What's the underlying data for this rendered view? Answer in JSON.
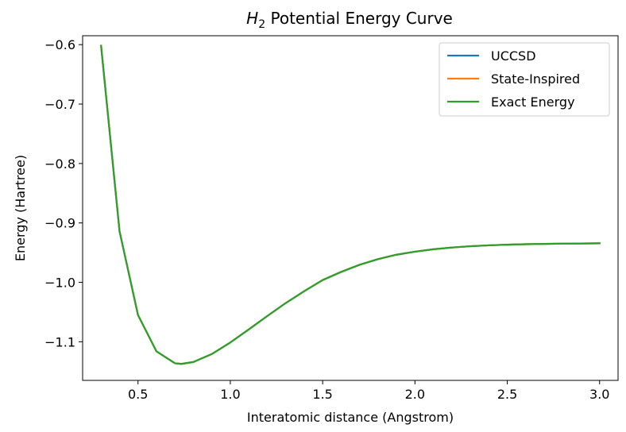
{
  "chart_data": {
    "type": "line",
    "title_main": "H",
    "title_sub": "2",
    "title_rest": " Potential Energy Curve",
    "xlabel": "Interatomic distance (Angstrom)",
    "ylabel": "Energy (Hartree)",
    "xlim": [
      0.2,
      3.1
    ],
    "ylim": [
      -1.165,
      -0.585
    ],
    "xticks": [
      0.5,
      1.0,
      1.5,
      2.0,
      2.5,
      3.0
    ],
    "xtick_labels": [
      "0.5",
      "1.0",
      "1.5",
      "2.0",
      "2.5",
      "3.0"
    ],
    "yticks": [
      -1.1,
      -1.0,
      -0.9,
      -0.8,
      -0.7,
      -0.6
    ],
    "ytick_labels": [
      "−1.1",
      "−1.0",
      "−0.9",
      "−0.8",
      "−0.7",
      "−0.6"
    ],
    "grid": false,
    "legend_position": "top-right",
    "x": [
      0.3,
      0.4,
      0.5,
      0.6,
      0.7,
      0.735,
      0.8,
      0.9,
      1.0,
      1.1,
      1.2,
      1.3,
      1.4,
      1.5,
      1.6,
      1.7,
      1.8,
      1.9,
      2.0,
      2.1,
      2.2,
      2.3,
      2.4,
      2.5,
      2.6,
      2.7,
      2.8,
      2.9,
      3.0
    ],
    "series": [
      {
        "name": "UCCSD",
        "color": "#1f77b4",
        "values": [
          -0.6018,
          -0.9141,
          -1.0551,
          -1.1162,
          -1.1362,
          -1.1373,
          -1.1341,
          -1.1206,
          -1.1012,
          -1.0792,
          -1.0567,
          -1.0349,
          -1.0149,
          -0.9962,
          -0.9825,
          -0.9705,
          -0.961,
          -0.9535,
          -0.9484,
          -0.9443,
          -0.9414,
          -0.9392,
          -0.9377,
          -0.9366,
          -0.9358,
          -0.9353,
          -0.9349,
          -0.9346,
          -0.9343
        ]
      },
      {
        "name": "State-Inspired",
        "color": "#ff7f0e",
        "values": [
          -0.6018,
          -0.9141,
          -1.0551,
          -1.1162,
          -1.1362,
          -1.1373,
          -1.1341,
          -1.1206,
          -1.1012,
          -1.0792,
          -1.0567,
          -1.0349,
          -1.0149,
          -0.9962,
          -0.9825,
          -0.9705,
          -0.961,
          -0.9535,
          -0.9484,
          -0.9443,
          -0.9414,
          -0.9392,
          -0.9377,
          -0.9366,
          -0.9358,
          -0.9353,
          -0.9349,
          -0.9346,
          -0.9343
        ]
      },
      {
        "name": "Exact Energy",
        "color": "#2ca02c",
        "values": [
          -0.6018,
          -0.9141,
          -1.0551,
          -1.1162,
          -1.1362,
          -1.1373,
          -1.1341,
          -1.1206,
          -1.1012,
          -1.0792,
          -1.0567,
          -1.0349,
          -1.0149,
          -0.9962,
          -0.9825,
          -0.9705,
          -0.961,
          -0.9535,
          -0.9484,
          -0.9443,
          -0.9414,
          -0.9392,
          -0.9377,
          -0.9366,
          -0.9358,
          -0.9353,
          -0.9349,
          -0.9346,
          -0.9343
        ]
      }
    ]
  }
}
